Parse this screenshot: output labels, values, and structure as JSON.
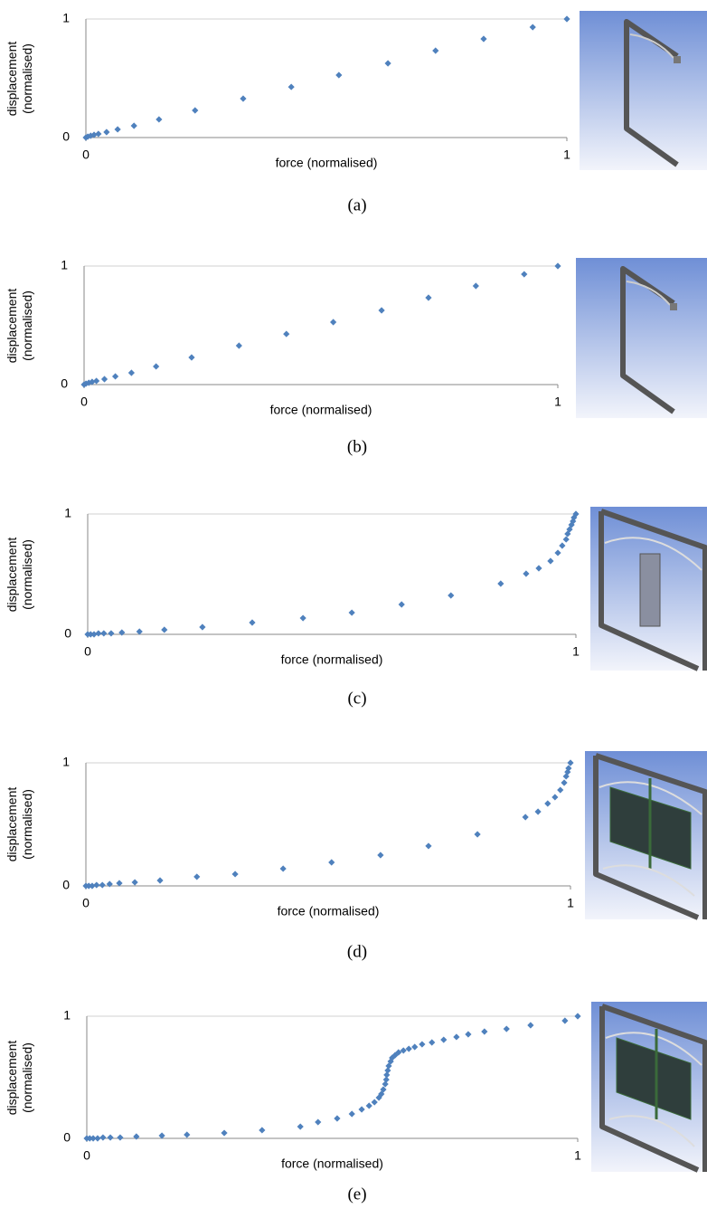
{
  "chart_data": [
    {
      "type": "scatter",
      "caption": "(a)",
      "xlabel": "force (normalised)",
      "ylabel": "displacement (normalised)",
      "x": [
        0,
        0.004,
        0.01,
        0.017,
        0.026,
        0.043,
        0.066,
        0.1,
        0.152,
        0.227,
        0.327,
        0.427,
        0.526,
        0.628,
        0.727,
        0.827,
        0.929,
        1
      ],
      "y": [
        0,
        0.008,
        0.015,
        0.023,
        0.031,
        0.046,
        0.069,
        0.099,
        0.153,
        0.229,
        0.328,
        0.427,
        0.527,
        0.626,
        0.733,
        0.832,
        0.931,
        1
      ],
      "color": "#4f81bd",
      "xlim": [
        0,
        1
      ],
      "ylim": [
        0,
        1
      ],
      "xticks": [
        0,
        1
      ],
      "yticks": [
        0,
        1
      ],
      "grid": true
    },
    {
      "type": "scatter",
      "caption": "(b)",
      "xlabel": "force (normalised)",
      "ylabel": "displacement (normalised)",
      "x": [
        0,
        0.004,
        0.01,
        0.017,
        0.026,
        0.043,
        0.066,
        0.1,
        0.152,
        0.227,
        0.327,
        0.427,
        0.526,
        0.628,
        0.727,
        0.827,
        0.929,
        1
      ],
      "y": [
        0,
        0.008,
        0.015,
        0.023,
        0.031,
        0.046,
        0.069,
        0.099,
        0.153,
        0.229,
        0.328,
        0.427,
        0.527,
        0.626,
        0.733,
        0.832,
        0.931,
        1
      ],
      "color": "#4f81bd",
      "xlim": [
        0,
        1
      ],
      "ylim": [
        0,
        1
      ],
      "xticks": [
        0,
        1
      ],
      "yticks": [
        0,
        1
      ],
      "grid": true
    },
    {
      "type": "scatter",
      "caption": "(c)",
      "xlabel": "force (normalised)",
      "ylabel": "displacement (normalised)",
      "x": [
        0,
        0.006,
        0.013,
        0.022,
        0.033,
        0.048,
        0.07,
        0.106,
        0.157,
        0.235,
        0.337,
        0.441,
        0.541,
        0.643,
        0.744,
        0.846,
        0.898,
        0.924,
        0.948,
        0.963,
        0.972,
        0.98,
        0.983,
        0.987,
        0.991,
        0.994,
        0.996,
        1
      ],
      "y": [
        0,
        0,
        0,
        0.008,
        0.008,
        0.008,
        0.015,
        0.023,
        0.038,
        0.06,
        0.098,
        0.135,
        0.18,
        0.248,
        0.323,
        0.421,
        0.504,
        0.549,
        0.609,
        0.677,
        0.737,
        0.789,
        0.835,
        0.872,
        0.91,
        0.94,
        0.97,
        1
      ],
      "color": "#4f81bd",
      "xlim": [
        0,
        1
      ],
      "ylim": [
        0,
        1
      ],
      "xticks": [
        0,
        1
      ],
      "yticks": [
        0,
        1
      ],
      "grid": true
    },
    {
      "type": "scatter",
      "caption": "(d)",
      "xlabel": "force (normalised)",
      "ylabel": "displacement (normalised)",
      "x": [
        0,
        0.006,
        0.013,
        0.022,
        0.034,
        0.049,
        0.069,
        0.101,
        0.153,
        0.229,
        0.308,
        0.407,
        0.507,
        0.608,
        0.707,
        0.808,
        0.907,
        0.933,
        0.953,
        0.968,
        0.979,
        0.987,
        0.991,
        0.994,
        0.996,
        1
      ],
      "y": [
        0,
        0,
        0,
        0.007,
        0.007,
        0.015,
        0.022,
        0.029,
        0.044,
        0.074,
        0.096,
        0.14,
        0.191,
        0.25,
        0.324,
        0.419,
        0.559,
        0.603,
        0.669,
        0.721,
        0.779,
        0.838,
        0.89,
        0.926,
        0.956,
        1
      ],
      "color": "#4f81bd",
      "xlim": [
        0,
        1
      ],
      "ylim": [
        0,
        1
      ],
      "xticks": [
        0,
        1
      ],
      "yticks": [
        0,
        1
      ],
      "grid": true
    },
    {
      "type": "scatter",
      "caption": "(e)",
      "xlabel": "force (normalised)",
      "ylabel": "displacement (normalised)",
      "x": [
        0,
        0.006,
        0.013,
        0.022,
        0.033,
        0.048,
        0.068,
        0.101,
        0.153,
        0.204,
        0.28,
        0.357,
        0.435,
        0.471,
        0.51,
        0.54,
        0.56,
        0.575,
        0.586,
        0.595,
        0.6,
        0.604,
        0.608,
        0.61,
        0.611,
        0.613,
        0.615,
        0.619,
        0.622,
        0.628,
        0.635,
        0.645,
        0.656,
        0.668,
        0.683,
        0.703,
        0.727,
        0.753,
        0.777,
        0.81,
        0.855,
        0.904,
        0.974,
        1
      ],
      "y": [
        0,
        0,
        0,
        0,
        0.007,
        0.007,
        0.007,
        0.015,
        0.022,
        0.03,
        0.044,
        0.067,
        0.096,
        0.133,
        0.163,
        0.2,
        0.237,
        0.267,
        0.296,
        0.333,
        0.363,
        0.4,
        0.444,
        0.481,
        0.519,
        0.556,
        0.593,
        0.63,
        0.659,
        0.681,
        0.704,
        0.719,
        0.733,
        0.748,
        0.77,
        0.785,
        0.807,
        0.83,
        0.852,
        0.874,
        0.896,
        0.926,
        0.963,
        1
      ],
      "color": "#4f81bd",
      "xlim": [
        0,
        1
      ],
      "ylim": [
        0,
        1
      ],
      "xticks": [
        0,
        1
      ],
      "yticks": [
        0,
        1
      ],
      "grid": true
    }
  ]
}
